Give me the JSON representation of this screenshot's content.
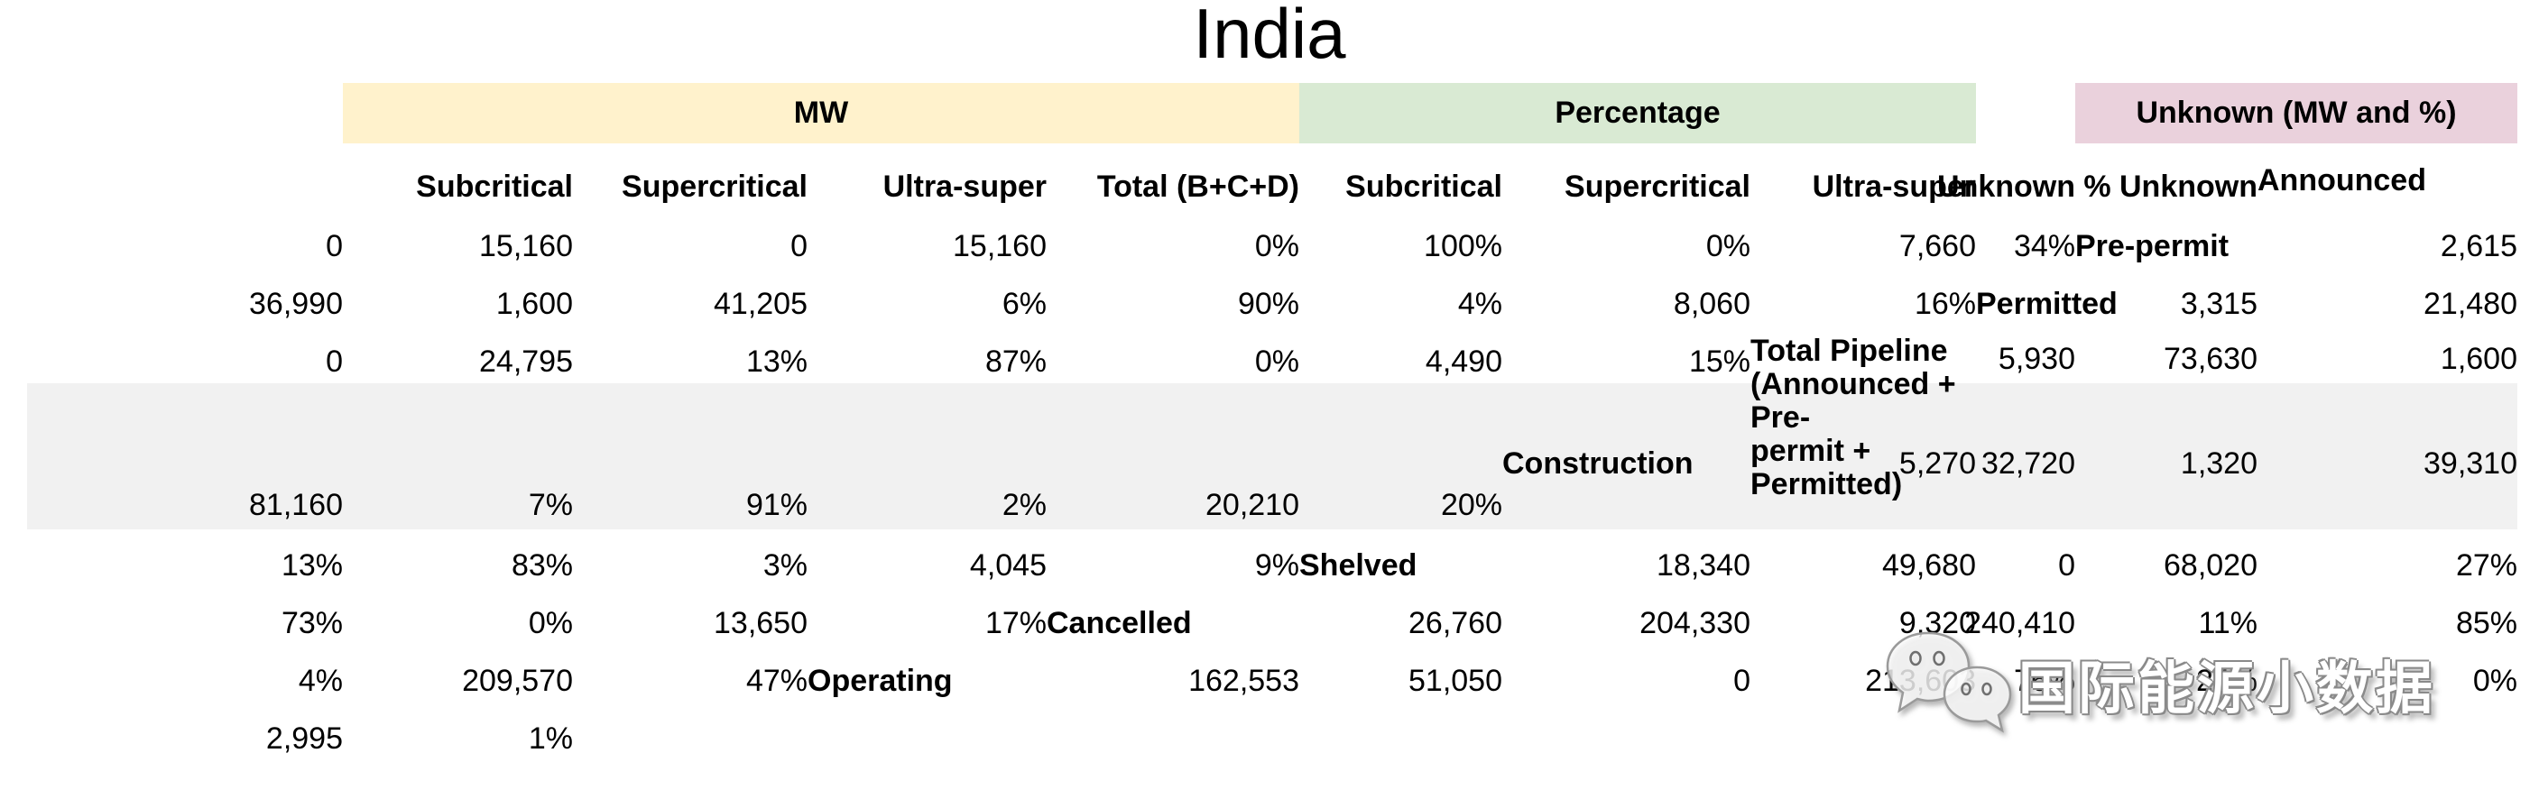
{
  "title": "India",
  "sections": [
    {
      "label": "MW",
      "color": "#fff2cc"
    },
    {
      "label": "Percentage",
      "color": "#d9ead3"
    },
    {
      "label": "Unknown (MW and %)",
      "color": "#ead1dc"
    }
  ],
  "columns": [
    "Subcritical",
    "Supercritical",
    "Ultra-super",
    "Total (B+C+D)",
    "Subcritical",
    "Supercritical",
    "Ultra-super",
    "Unknown",
    "% Unknown"
  ],
  "rows": [
    {
      "label": "Announced",
      "shaded": false,
      "values": [
        "0",
        "15,160",
        "0",
        "15,160",
        "0%",
        "100%",
        "0%",
        "7,660",
        "34%"
      ]
    },
    {
      "label": "Pre-permit",
      "shaded": false,
      "values": [
        "2,615",
        "36,990",
        "1,600",
        "41,205",
        "6%",
        "90%",
        "4%",
        "8,060",
        "16%"
      ]
    },
    {
      "label": "Permitted",
      "shaded": false,
      "values": [
        "3,315",
        "21,480",
        "0",
        "24,795",
        "13%",
        "87%",
        "0%",
        "4,490",
        "15%"
      ]
    },
    {
      "label": "Total Pipeline (Announced + Pre-permit + Permitted)",
      "label_lines": [
        "Total Pipeline",
        "(Announced + Pre-",
        "permit +",
        "Permitted)"
      ],
      "shaded": true,
      "values": [
        "5,930",
        "73,630",
        "1,600",
        "81,160",
        "7%",
        "91%",
        "2%",
        "20,210",
        "20%"
      ]
    },
    {
      "label": "Construction",
      "shaded": false,
      "values": [
        "5,270",
        "32,720",
        "1,320",
        "39,310",
        "13%",
        "83%",
        "3%",
        "4,045",
        "9%"
      ]
    },
    {
      "label": "Shelved",
      "shaded": false,
      "values": [
        "18,340",
        "49,680",
        "0",
        "68,020",
        "27%",
        "73%",
        "0%",
        "13,650",
        "17%"
      ]
    },
    {
      "label": "Cancelled",
      "shaded": false,
      "values": [
        "26,760",
        "204,330",
        "9,320",
        "240,410",
        "11%",
        "85%",
        "4%",
        "209,570",
        "47%"
      ]
    },
    {
      "label": "Operating",
      "shaded": false,
      "values": [
        "162,553",
        "51,050",
        "0",
        "213,603",
        "76%",
        "24%",
        "0%",
        "2,995",
        "1%"
      ]
    }
  ],
  "watermark": {
    "name": "国际能源小数据",
    "icon": "wechat-logo"
  },
  "chart_data": {
    "type": "table",
    "title": "India",
    "column_groups": [
      "MW",
      "MW",
      "MW",
      "MW",
      "Percentage",
      "Percentage",
      "Percentage",
      "Unknown (MW and %)",
      "Unknown (MW and %)"
    ],
    "columns": [
      "Subcritical (MW)",
      "Supercritical (MW)",
      "Ultra-super (MW)",
      "Total (B+C+D) (MW)",
      "Subcritical (%)",
      "Supercritical (%)",
      "Ultra-super (%)",
      "Unknown (MW)",
      "% Unknown"
    ],
    "rows": [
      {
        "label": "Announced",
        "values": [
          0,
          15160,
          0,
          15160,
          "0%",
          "100%",
          "0%",
          7660,
          "34%"
        ]
      },
      {
        "label": "Pre-permit",
        "values": [
          2615,
          36990,
          1600,
          41205,
          "6%",
          "90%",
          "4%",
          8060,
          "16%"
        ]
      },
      {
        "label": "Permitted",
        "values": [
          3315,
          21480,
          0,
          24795,
          "13%",
          "87%",
          "0%",
          4490,
          "15%"
        ]
      },
      {
        "label": "Total Pipeline (Announced + Pre-permit + Permitted)",
        "values": [
          5930,
          73630,
          1600,
          81160,
          "7%",
          "91%",
          "2%",
          20210,
          "20%"
        ]
      },
      {
        "label": "Construction",
        "values": [
          5270,
          32720,
          1320,
          39310,
          "13%",
          "83%",
          "3%",
          4045,
          "9%"
        ]
      },
      {
        "label": "Shelved",
        "values": [
          18340,
          49680,
          0,
          68020,
          "27%",
          "73%",
          "0%",
          13650,
          "17%"
        ]
      },
      {
        "label": "Cancelled",
        "values": [
          26760,
          204330,
          9320,
          240410,
          "11%",
          "85%",
          "4%",
          209570,
          "47%"
        ]
      },
      {
        "label": "Operating",
        "values": [
          162553,
          51050,
          0,
          213603,
          "76%",
          "24%",
          "0%",
          2995,
          "1%"
        ]
      }
    ],
    "notes": "Shaded highlight row: Total Pipeline. Watermark: WeChat account 国际能源小数据 overlaps Cancelled row."
  }
}
